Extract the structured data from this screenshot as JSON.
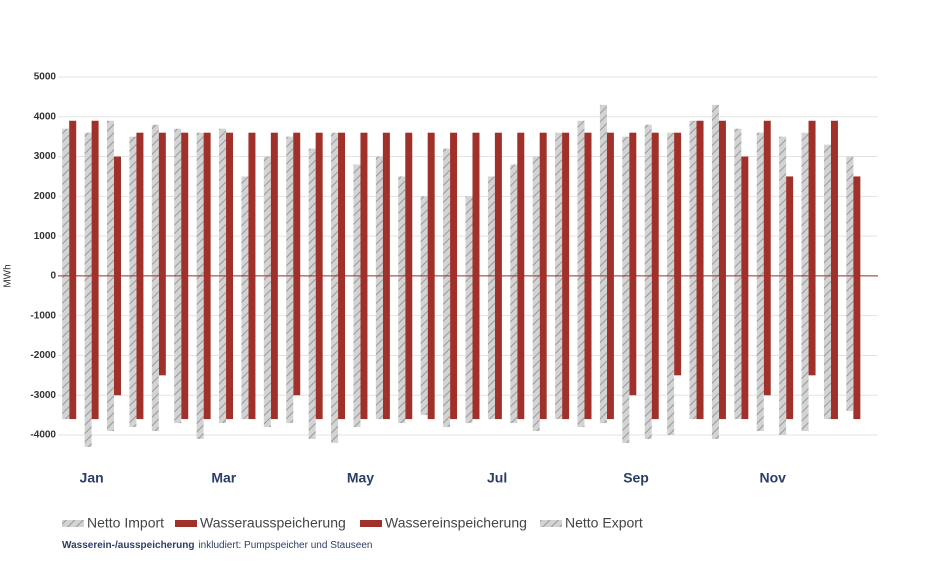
{
  "chart_data": {
    "type": "bar",
    "y_label": "MWh",
    "x": [
      5,
      15,
      25,
      35,
      45,
      55,
      65,
      75,
      85,
      95,
      105,
      115,
      125,
      135,
      145,
      155,
      165,
      175,
      185,
      195,
      205,
      215,
      225,
      235,
      245,
      255,
      265,
      275,
      285,
      295,
      305,
      315,
      325,
      335,
      345,
      355
    ],
    "xlim": [
      0,
      366
    ],
    "xticks": [
      {
        "value": 15,
        "label": "Jan"
      },
      {
        "value": 74,
        "label": "Mar"
      },
      {
        "value": 135,
        "label": "May"
      },
      {
        "value": 196,
        "label": "Jul"
      },
      {
        "value": 258,
        "label": "Sep"
      },
      {
        "value": 319,
        "label": "Nov"
      }
    ],
    "ylim": [
      -4000,
      5000
    ],
    "yticks": [
      -4000,
      -3000,
      -2000,
      -1000,
      0,
      1000,
      2000,
      3000,
      4000,
      5000
    ],
    "grid": true,
    "series": [
      {
        "name": "Netto Import",
        "color": "#d3d3d3",
        "hatch": true,
        "values": [
          3700,
          3600,
          3900,
          3500,
          3800,
          3700,
          3600,
          3700,
          2500,
          3000,
          3500,
          3200,
          3600,
          2800,
          3000,
          2500,
          2000,
          3200,
          2000,
          2500,
          2800,
          3000,
          3600,
          3900,
          4300,
          3500,
          3800,
          3600,
          3900,
          4300,
          3700,
          3600,
          3500,
          3600,
          3300,
          3000
        ]
      },
      {
        "name": "Wasserausspeicherung",
        "color": "#a0302a",
        "hatch": false,
        "values": [
          3900,
          3900,
          3000,
          3600,
          3600,
          3600,
          3600,
          3600,
          3600,
          3600,
          3600,
          3600,
          3600,
          3600,
          3600,
          3600,
          3600,
          3600,
          3600,
          3600,
          3600,
          3600,
          3600,
          3600,
          3600,
          3600,
          3600,
          3600,
          3900,
          3900,
          3000,
          3900,
          2500,
          3900,
          3900,
          2500
        ]
      },
      {
        "name": "Wassereinspeicherung",
        "color": "#a0302a",
        "hatch": false,
        "values": [
          -3600,
          -3600,
          -3000,
          -3600,
          -2500,
          -3600,
          -3600,
          -3600,
          -3600,
          -3600,
          -3000,
          -3600,
          -3600,
          -3600,
          -3600,
          -3600,
          -3600,
          -3600,
          -3600,
          -3600,
          -3600,
          -3600,
          -3600,
          -3600,
          -3600,
          -3000,
          -3600,
          -2500,
          -3600,
          -3600,
          -3600,
          -3000,
          -3600,
          -2500,
          -3600,
          -3600
        ]
      },
      {
        "name": "Netto Export",
        "color": "#d3d3d3",
        "hatch": true,
        "values": [
          -3600,
          -4300,
          -3900,
          -3800,
          -3900,
          -3700,
          -4100,
          -3700,
          -3600,
          -3800,
          -3700,
          -4100,
          -4200,
          -3800,
          -3600,
          -3700,
          -3500,
          -3800,
          -3700,
          -3600,
          -3700,
          -3900,
          -3600,
          -3800,
          -3700,
          -4200,
          -4100,
          -4000,
          -3600,
          -4100,
          -3600,
          -3900,
          -4000,
          -3900,
          -3600,
          -3400
        ]
      }
    ],
    "note": {
      "bold": "Wasserein-/ausspeicherung",
      "text": "inkludiert: Pumpspeicher und Stauseen"
    }
  }
}
